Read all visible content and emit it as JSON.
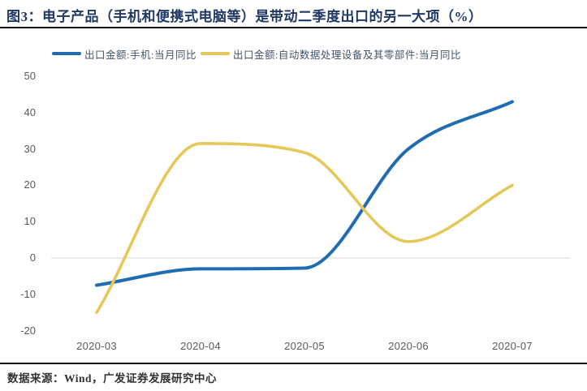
{
  "header": {
    "title": "图3：电子产品（手机和便携式电脑等）是带动二季度出口的另一大项（%）"
  },
  "legend": [
    {
      "label": "出口金额:手机:当月同比"
    },
    {
      "label": "出口金额:自动数据处理设备及其零部件:当月同比"
    }
  ],
  "footer": {
    "source": "数据来源：Wind，广发证券发展研究中心"
  },
  "colors": {
    "title": "#1F3864",
    "axis_labels": "#595959",
    "zero_gridline": "#D8D8D8",
    "series_blue": "#1F6CB2",
    "series_yellow": "#E4C85A"
  },
  "chart_data": {
    "type": "line",
    "title": "电子产品（手机和便携式电脑等）是带动二季度出口的另一大项（%）",
    "categories": [
      "2020-03",
      "2020-04",
      "2020-05",
      "2020-06",
      "2020-07"
    ],
    "series": [
      {
        "name": "出口金额:手机:当月同比",
        "color": "#1F6CB2",
        "values": [
          -7.5,
          -3,
          -2.8,
          30,
          43
        ]
      },
      {
        "name": "出口金额:自动数据处理设备及其零部件:当月同比",
        "color": "#E4C85A",
        "values": [
          -15,
          31.5,
          29,
          4.5,
          20
        ]
      }
    ],
    "xlabel": "",
    "ylabel": "",
    "ylim": [
      -20,
      50
    ],
    "yticks": [
      50,
      40,
      30,
      20,
      10,
      0,
      -10,
      -20
    ],
    "gridlines": "zero-line-only",
    "legend_position": "top",
    "smoothing": "spline"
  }
}
